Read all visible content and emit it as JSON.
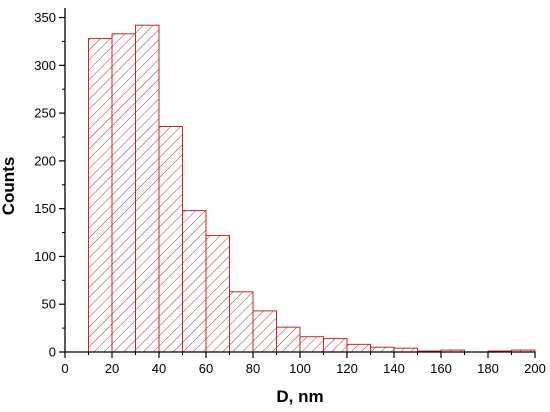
{
  "chart_data": {
    "type": "bar",
    "title": "",
    "xlabel": "D, nm",
    "ylabel": "Counts",
    "xlim": [
      0,
      200
    ],
    "ylim": [
      0,
      360
    ],
    "x_ticks": [
      0,
      20,
      40,
      60,
      80,
      100,
      120,
      140,
      160,
      180,
      200
    ],
    "y_ticks": [
      0,
      50,
      100,
      150,
      200,
      250,
      300,
      350
    ],
    "bin_width": 10,
    "bin_starts": [
      10,
      20,
      30,
      40,
      50,
      60,
      70,
      80,
      90,
      100,
      110,
      120,
      130,
      140,
      150,
      160,
      170,
      180,
      190
    ],
    "values": [
      328,
      333,
      342,
      236,
      148,
      122,
      63,
      43,
      26,
      16,
      14,
      8,
      5,
      4,
      1,
      2,
      0,
      1,
      2
    ],
    "bar_style": {
      "fill": "#ffffff",
      "edge_color": "#c62828",
      "hatch_color": "#c62828",
      "hatch": "diagonal"
    },
    "grid": false,
    "legend": "none"
  }
}
